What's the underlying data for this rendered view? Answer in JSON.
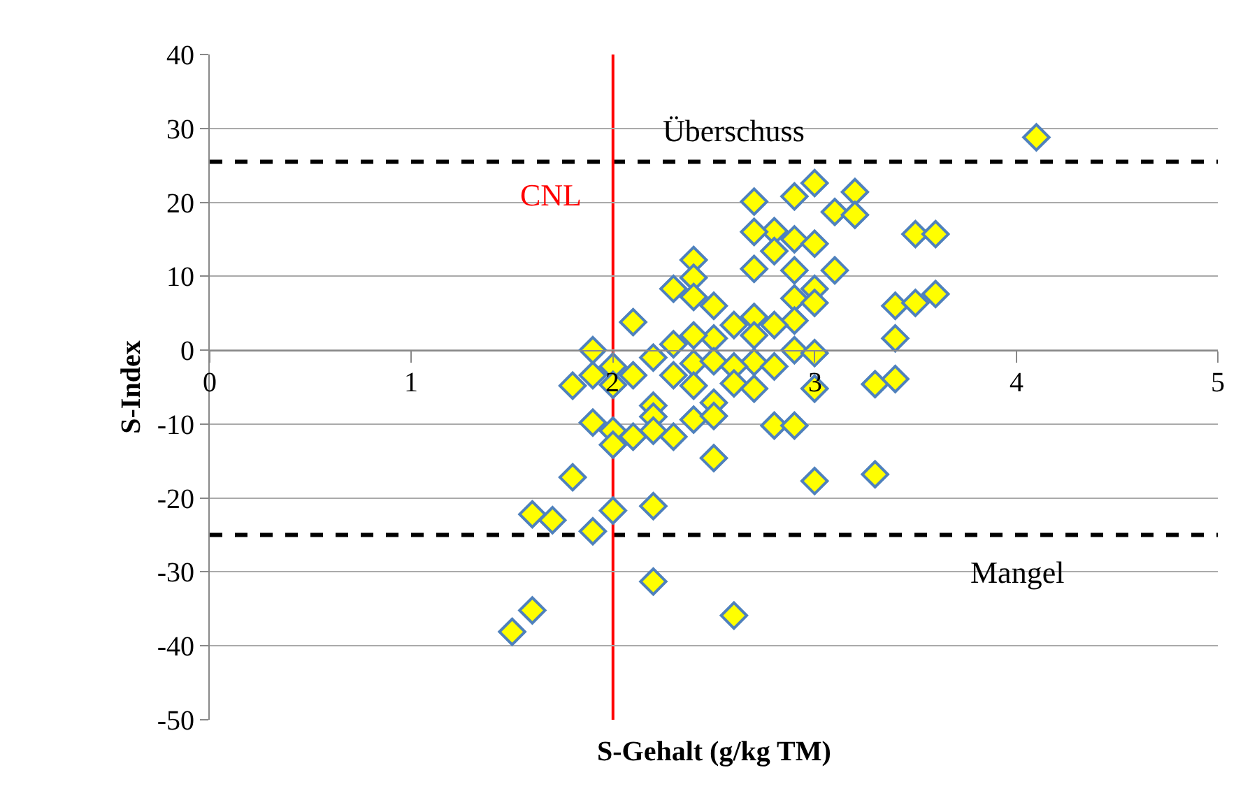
{
  "chart_data": {
    "type": "scatter",
    "xlabel": "S-Gehalt (g/kg TM)",
    "ylabel": "S-Index",
    "x": [
      4.1,
      2.7,
      2.8,
      2.8,
      2.9,
      3.0,
      3.1,
      3.2,
      3.2,
      2.7,
      2.9,
      3.0,
      2.7,
      2.9,
      3.1,
      3.5,
      3.6,
      2.4,
      2.4,
      2.3,
      2.4,
      2.5,
      2.9,
      3.0,
      3.0,
      3.4,
      3.5,
      3.6,
      3.4,
      2.1,
      2.9,
      2.7,
      2.6,
      2.8,
      2.5,
      2.3,
      2.4,
      2.7,
      1.9,
      2.9,
      3.0,
      2.2,
      2.4,
      2.5,
      2.7,
      2.8,
      2.0,
      2.0,
      1.8,
      1.9,
      2.1,
      2.3,
      2.6,
      2.6,
      2.7,
      3.0,
      2.4,
      2.5,
      2.2,
      2.2,
      1.9,
      2.0,
      2.0,
      2.1,
      2.2,
      2.3,
      2.4,
      2.5,
      2.5,
      2.8,
      2.9,
      3.0,
      3.3,
      3.4,
      3.3,
      1.8,
      2.2,
      2.0,
      1.6,
      1.7,
      1.9,
      2.2,
      1.6,
      1.5,
      2.6
    ],
    "values": [
      28.8,
      20.1,
      16.1,
      13.4,
      20.8,
      22.6,
      18.7,
      21.4,
      18.3,
      16,
      15,
      14.4,
      11,
      10.8,
      10.8,
      15.7,
      15.7,
      12.2,
      9.8,
      8.3,
      7.2,
      6,
      7,
      8.3,
      6.4,
      6,
      6.4,
      7.6,
      1.6,
      3.8,
      4,
      4.5,
      3.4,
      3.4,
      1.6,
      0.8,
      2,
      2,
      0,
      0,
      -0.4,
      -1,
      -1.8,
      -1.5,
      -1.6,
      -2.2,
      -2.2,
      -4.7,
      -4.8,
      -3.4,
      -3.4,
      -3.4,
      -2.2,
      -4.5,
      -5.2,
      -5.2,
      -4.8,
      -7.1,
      -7.5,
      -9,
      -9.8,
      -10.9,
      -12.8,
      -11.7,
      -10.9,
      -11.7,
      -9.4,
      -8.9,
      -14.6,
      -10.2,
      -10.2,
      -17.7,
      -4.6,
      -3.9,
      -16.8,
      -17.2,
      -21.1,
      -21.7,
      -22.2,
      -23,
      -24.5,
      -31.3,
      -35.2,
      -38.1,
      -35.9
    ],
    "color": "#ffff00",
    "marker": "diamond",
    "xlim": [
      0,
      5
    ],
    "xticks": [
      0,
      1,
      2,
      3,
      4,
      5
    ],
    "ylim": [
      -50,
      40
    ],
    "yticks": [
      -50,
      -40,
      -30,
      -20,
      -10,
      0,
      10,
      20,
      30,
      40
    ],
    "grid": "y",
    "ref_lines": [
      {
        "axis": "y",
        "value": 25.5,
        "label": "Überschuss",
        "color": "#000000",
        "line_style": "dashed"
      },
      {
        "axis": "y",
        "value": -25,
        "label": "Mangel",
        "color": "#000000",
        "line_style": "dashed"
      },
      {
        "axis": "x",
        "value": 2,
        "label": "CNL",
        "color": "#ff0000",
        "line_style": "solid"
      }
    ]
  }
}
